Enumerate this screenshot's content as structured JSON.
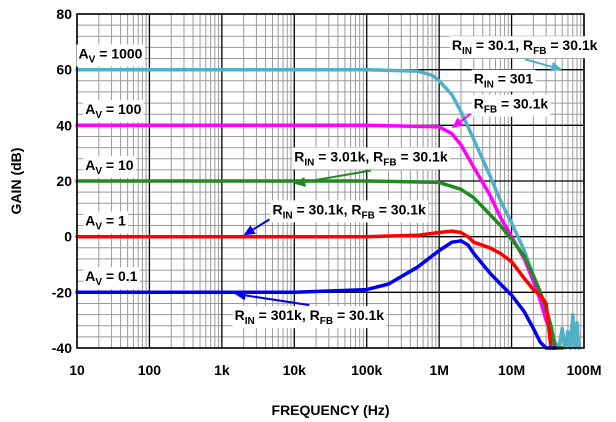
{
  "chart_data": {
    "type": "line",
    "xlabel": "FREQUENCY (Hz)",
    "ylabel": "GAIN (dB)",
    "x_scale": "log",
    "xlim": [
      10,
      100000000
    ],
    "ylim": [
      -40,
      80
    ],
    "grid": true,
    "x_ticks": [
      {
        "value": 10,
        "label": "10"
      },
      {
        "value": 100,
        "label": "100"
      },
      {
        "value": 1000,
        "label": "1k"
      },
      {
        "value": 10000,
        "label": "10k"
      },
      {
        "value": 100000,
        "label": "100k"
      },
      {
        "value": 1000000,
        "label": "1M"
      },
      {
        "value": 10000000,
        "label": "10M"
      },
      {
        "value": 100000000,
        "label": "100M"
      }
    ],
    "y_ticks": [
      {
        "value": 80,
        "label": "80"
      },
      {
        "value": 60,
        "label": "60"
      },
      {
        "value": 40,
        "label": "40"
      },
      {
        "value": 20,
        "label": "20"
      },
      {
        "value": 0,
        "label": "0"
      },
      {
        "value": -20,
        "label": "-20"
      },
      {
        "value": -40,
        "label": "-40"
      }
    ],
    "series": [
      {
        "color": "#4fb0c6",
        "points": [
          [
            10,
            60
          ],
          [
            1000,
            60
          ],
          [
            100000,
            60
          ],
          [
            500000,
            59.5
          ],
          [
            800000,
            58
          ],
          [
            1000000,
            56
          ],
          [
            1500000,
            51
          ],
          [
            2000000,
            45
          ],
          [
            3000000,
            35
          ],
          [
            5000000,
            22
          ],
          [
            7000000,
            13
          ],
          [
            10000000,
            5
          ],
          [
            15000000,
            -5
          ],
          [
            20000000,
            -14
          ],
          [
            25000000,
            -22
          ],
          [
            30000000,
            -30
          ],
          [
            35000000,
            -34
          ],
          [
            40000000,
            -38
          ],
          [
            45000000,
            -40
          ],
          [
            50000000,
            -33
          ],
          [
            55000000,
            -40
          ],
          [
            60000000,
            -34
          ],
          [
            65000000,
            -40
          ],
          [
            70000000,
            -28
          ],
          [
            75000000,
            -40
          ],
          [
            80000000,
            -31
          ],
          [
            85000000,
            -40
          ]
        ]
      },
      {
        "color": "#ff00ff",
        "points": [
          [
            10,
            40
          ],
          [
            100000,
            40
          ],
          [
            1000000,
            39.5
          ],
          [
            1500000,
            37
          ],
          [
            2000000,
            33
          ],
          [
            3000000,
            25
          ],
          [
            5000000,
            15
          ],
          [
            7000000,
            7
          ],
          [
            10000000,
            0
          ],
          [
            15000000,
            -8
          ],
          [
            20000000,
            -16
          ],
          [
            25000000,
            -23
          ],
          [
            30000000,
            -30
          ],
          [
            35000000,
            -34
          ],
          [
            40000000,
            -40
          ],
          [
            50000000,
            -40
          ]
        ]
      },
      {
        "color": "#218a21",
        "points": [
          [
            10,
            20
          ],
          [
            100000,
            20
          ],
          [
            1000000,
            19.5
          ],
          [
            2000000,
            17
          ],
          [
            3000000,
            14
          ],
          [
            5000000,
            8
          ],
          [
            7000000,
            4
          ],
          [
            10000000,
            -1
          ],
          [
            15000000,
            -7
          ],
          [
            20000000,
            -14
          ],
          [
            25000000,
            -20
          ],
          [
            30000000,
            -26
          ],
          [
            35000000,
            -32
          ],
          [
            40000000,
            -40
          ],
          [
            50000000,
            -40
          ]
        ]
      },
      {
        "color": "#ff0000",
        "points": [
          [
            10,
            0
          ],
          [
            100000,
            0
          ],
          [
            500000,
            0.5
          ],
          [
            1000000,
            1.5
          ],
          [
            1500000,
            2
          ],
          [
            2000000,
            1.5
          ],
          [
            2500000,
            0
          ],
          [
            3000000,
            -2
          ],
          [
            5000000,
            -4
          ],
          [
            7000000,
            -6
          ],
          [
            10000000,
            -9
          ],
          [
            15000000,
            -15
          ],
          [
            20000000,
            -19
          ],
          [
            25000000,
            -21
          ],
          [
            30000000,
            -24
          ],
          [
            35000000,
            -40
          ],
          [
            40000000,
            -40
          ]
        ]
      },
      {
        "color": "#0000ee",
        "points": [
          [
            10,
            -20
          ],
          [
            10000,
            -20
          ],
          [
            100000,
            -19
          ],
          [
            200000,
            -17
          ],
          [
            500000,
            -11
          ],
          [
            1000000,
            -5
          ],
          [
            1500000,
            -2
          ],
          [
            2000000,
            -1.5
          ],
          [
            2500000,
            -3
          ],
          [
            3000000,
            -6
          ],
          [
            5000000,
            -13
          ],
          [
            7000000,
            -17
          ],
          [
            10000000,
            -21
          ],
          [
            15000000,
            -27
          ],
          [
            20000000,
            -33
          ],
          [
            25000000,
            -38
          ],
          [
            30000000,
            -40
          ],
          [
            40000000,
            -40
          ]
        ]
      }
    ],
    "annotations": [
      {
        "lines": [
          "A_{V} = 1000"
        ],
        "x": 10.5,
        "y": 64
      },
      {
        "lines": [
          "A_{V} = 100"
        ],
        "x": 13,
        "y": 44
      },
      {
        "lines": [
          "A_{V} = 10"
        ],
        "x": 13,
        "y": 24
      },
      {
        "lines": [
          "A_{V} = 1"
        ],
        "x": 13,
        "y": 4
      },
      {
        "lines": [
          "A_{V} = 0.1"
        ],
        "x": 13,
        "y": -16
      },
      {
        "lines": [
          "R_{IN} = 30.1, R_{FB} = 30.1k"
        ],
        "x": 1500000,
        "y": 67,
        "arrow_to": [
          50000000,
          60
        ]
      },
      {
        "lines": [
          "R_{IN} = 301"
        ],
        "x": 3000000,
        "y": 55
      },
      {
        "lines": [
          "R_{FB} = 30.1k"
        ],
        "x": 3000000,
        "y": 46,
        "arrow_to": [
          1500000,
          39
        ]
      },
      {
        "lines": [
          "R_{IN} = 3.01k, R_{FB} = 30.1k"
        ],
        "x": 10000,
        "y": 27,
        "arrow_to": [
          10000,
          19
        ]
      },
      {
        "lines": [
          "R_{IN} = 30.1k, R_{FB} = 30.1k"
        ],
        "x": 5000,
        "y": 8,
        "arrow_to": [
          2000,
          0.5
        ]
      },
      {
        "lines": [
          "R_{IN} = 301k, R_{FB} = 30.1k"
        ],
        "x": 1500,
        "y": -30,
        "arrow_to": [
          1500,
          -20.5
        ]
      }
    ]
  }
}
